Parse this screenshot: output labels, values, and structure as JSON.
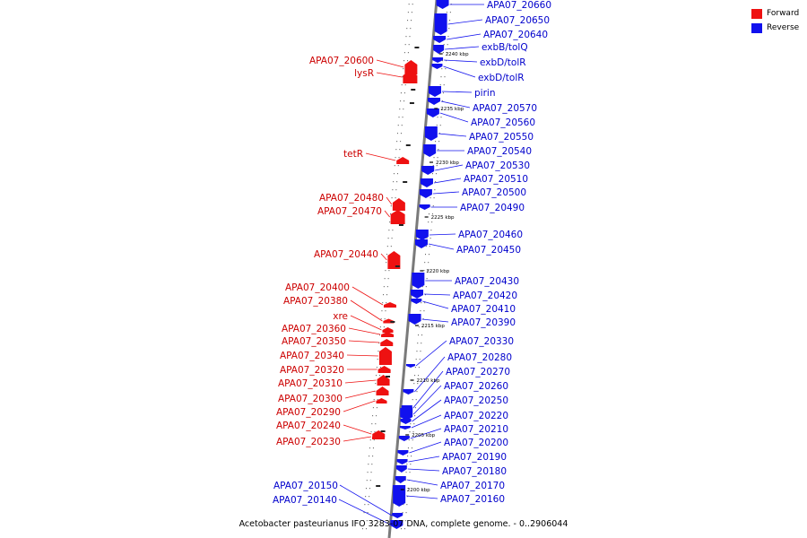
{
  "colors": {
    "forward": "#ee1111",
    "reverse": "#1111ee",
    "backbone": "#7a7a7a",
    "label_forward": "#cc0000",
    "label_reverse": "#0000cc"
  },
  "legend": {
    "forward_label": "Forward",
    "reverse_label": "Reverse"
  },
  "caption": "Acetobacter pasteurianus IFO 3283-07 DNA, complete genome. - 0..2906044",
  "ticks": [
    "2240 kbp",
    "2235 kbp",
    "2230 kbp",
    "2225 kbp",
    "2220 kbp",
    "2215 kbp",
    "2210 kbp",
    "2205 kbp",
    "2200 kbp"
  ],
  "forward_genes": [
    "APA07_20600",
    "lysR",
    "tetR",
    "APA07_20480",
    "APA07_20470",
    "APA07_20440",
    "APA07_20400",
    "APA07_20380",
    "xre",
    "APA07_20360",
    "APA07_20350",
    "APA07_20340",
    "APA07_20320",
    "APA07_20310",
    "APA07_20300",
    "APA07_20290",
    "APA07_20240",
    "APA07_20230"
  ],
  "reverse_genes": [
    "APA07_20660",
    "APA07_20650",
    "APA07_20640",
    "exbB/tolQ",
    "exbD/tolR",
    "exbD/tolR",
    "pirin",
    "APA07_20570",
    "APA07_20560",
    "APA07_20550",
    "APA07_20540",
    "APA07_20530",
    "APA07_20510",
    "APA07_20500",
    "APA07_20490",
    "APA07_20460",
    "APA07_20450",
    "APA07_20430",
    "APA07_20420",
    "APA07_20410",
    "APA07_20390",
    "APA07_20330",
    "APA07_20280",
    "APA07_20270",
    "APA07_20260",
    "APA07_20250",
    "APA07_20220",
    "APA07_20210",
    "APA07_20200",
    "APA07_20190",
    "APA07_20180",
    "APA07_20170",
    "APA07_20160",
    "APA07_20150",
    "APA07_20140"
  ]
}
